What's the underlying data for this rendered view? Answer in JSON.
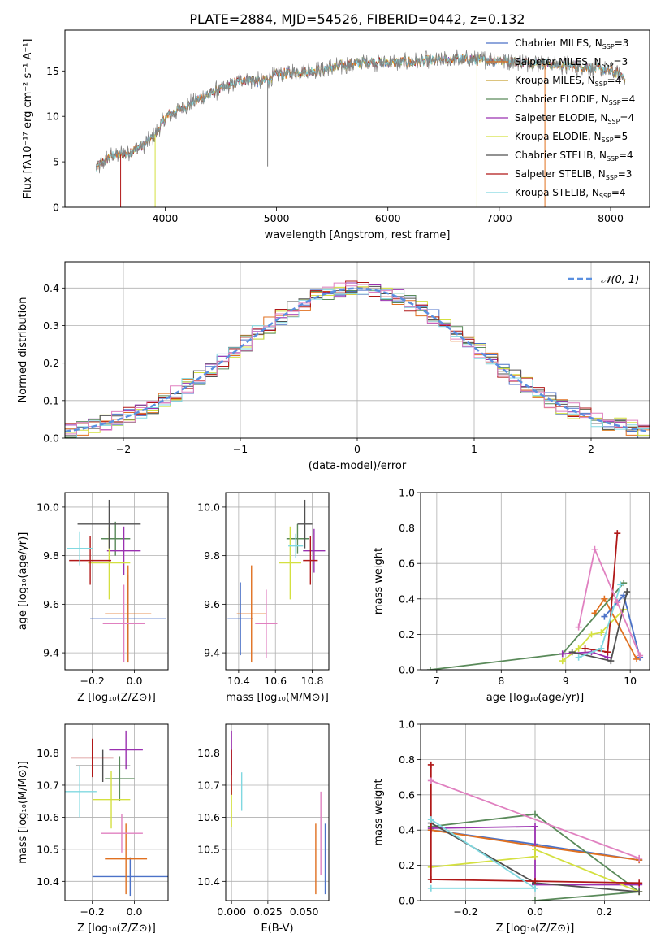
{
  "figure": {
    "title": "PLATE=2884, MJD=54526, FIBERID=0442, z=0.132"
  },
  "legend_series": [
    {
      "name": "Chabrier MILES, N",
      "sub": "SSP",
      "suffix": "=3",
      "color": "#4c72c8"
    },
    {
      "name": "Salpeter MILES, N",
      "sub": "SSP",
      "suffix": "=3",
      "color": "#e07020"
    },
    {
      "name": "Kroupa MILES, N",
      "sub": "SSP",
      "suffix": "=4",
      "color": "#c8a030"
    },
    {
      "name": "Chabrier ELODIE, N",
      "sub": "SSP",
      "suffix": "=4",
      "color": "#5a8a5a"
    },
    {
      "name": "Salpeter ELODIE, N",
      "sub": "SSP",
      "suffix": "=4",
      "color": "#9a30b0"
    },
    {
      "name": "Kroupa ELODIE, N",
      "sub": "SSP",
      "suffix": "=5",
      "color": "#d4e040"
    },
    {
      "name": "Chabrier STELIB, N",
      "sub": "SSP",
      "suffix": "=4",
      "color": "#505050"
    },
    {
      "name": "Salpeter STELIB, N",
      "sub": "SSP",
      "suffix": "=3",
      "color": "#b01818"
    },
    {
      "name": "Kroupa STELIB, N",
      "sub": "SSP",
      "suffix": "=4",
      "color": "#80d8e0"
    }
  ],
  "extra_colors": {
    "pink": "#e080c0",
    "teal": "#90e0d0",
    "data_gray": "#808080",
    "gauss": "#5a90e0"
  },
  "chart_data": [
    {
      "id": "spectrum",
      "type": "line",
      "title": "PLATE=2884, MJD=54526, FIBERID=0442, z=0.132",
      "xlabel": "wavelength [Angstrom, rest frame]",
      "ylabel": "Flux [fλ10⁻¹⁷ erg cm⁻² s⁻¹ A⁻¹]",
      "xlim": [
        3100,
        8350
      ],
      "ylim": [
        0,
        19.5
      ],
      "xticks": [
        4000,
        5000,
        6000,
        7000,
        8000
      ],
      "yticks": [
        0,
        5,
        10,
        15
      ],
      "grid": false,
      "legend": "top-right",
      "spectrum_x_range": [
        3380,
        8130
      ],
      "continuum": [
        [
          3380,
          4.2
        ],
        [
          3500,
          5.6
        ],
        [
          3650,
          5.9
        ],
        [
          3800,
          6.8
        ],
        [
          3900,
          7.8
        ],
        [
          4000,
          9.8
        ],
        [
          4100,
          10.6
        ],
        [
          4300,
          11.9
        ],
        [
          4500,
          13.0
        ],
        [
          4700,
          14.1
        ],
        [
          4860,
          13.8
        ],
        [
          5000,
          14.6
        ],
        [
          5200,
          14.9
        ],
        [
          5400,
          15.1
        ],
        [
          5600,
          15.6
        ],
        [
          5800,
          16.0
        ],
        [
          6000,
          15.9
        ],
        [
          6200,
          16.0
        ],
        [
          6400,
          16.1
        ],
        [
          6600,
          16.3
        ],
        [
          6800,
          16.2
        ],
        [
          7000,
          16.2
        ],
        [
          7200,
          16.0
        ],
        [
          7400,
          15.8
        ],
        [
          7600,
          15.6
        ],
        [
          7800,
          15.4
        ],
        [
          8000,
          15.0
        ],
        [
          8130,
          14.3
        ]
      ]
    },
    {
      "id": "residual_histogram",
      "type": "histogram",
      "xlabel": "(data-model)/error",
      "ylabel": "Normed distribution",
      "xlim": [
        -2.5,
        2.5
      ],
      "ylim": [
        0,
        0.47
      ],
      "xticks": [
        -2,
        -1,
        0,
        1,
        2
      ],
      "yticks": [
        0.0,
        0.1,
        0.2,
        0.3,
        0.4
      ],
      "grid": true,
      "legend": "top-right",
      "legend_label": "𝒩(0, 1)",
      "bin_width": 0.1,
      "gaussian": {
        "mu": 0,
        "sigma": 1
      }
    },
    {
      "id": "age_vs_Z",
      "type": "scatter",
      "xlabel": "Z [log₁₀(Z/Z⊙)]",
      "ylabel": "age  [log₁₀(age/yr)]",
      "xlim": [
        -0.33,
        0.16
      ],
      "ylim": [
        9.33,
        10.06
      ],
      "xticks": [
        -0.2,
        0.0
      ],
      "yticks": [
        9.4,
        9.6,
        9.8,
        10.0
      ],
      "grid": true,
      "points": [
        {
          "series": 0,
          "x": -0.03,
          "y": 9.54,
          "xerr": 0.18,
          "yerr": 0.18
        },
        {
          "series": 1,
          "x": -0.03,
          "y": 9.56,
          "xerr": 0.11,
          "yerr": 0.2
        },
        {
          "series": 3,
          "x": -0.09,
          "y": 9.87,
          "xerr": 0.07,
          "yerr": 0.07
        },
        {
          "series": 4,
          "x": -0.05,
          "y": 9.82,
          "xerr": 0.08,
          "yerr": 0.1
        },
        {
          "series": 5,
          "x": -0.12,
          "y": 9.77,
          "xerr": 0.1,
          "yerr": 0.15
        },
        {
          "series": 6,
          "x": -0.12,
          "y": 9.93,
          "xerr": 0.15,
          "yerr": 0.1
        },
        {
          "series": 7,
          "x": -0.21,
          "y": 9.78,
          "xerr": 0.1,
          "yerr": 0.1
        },
        {
          "series": 8,
          "x": -0.26,
          "y": 9.83,
          "xerr": 0.06,
          "yerr": 0.07
        },
        {
          "series": 9,
          "x": -0.05,
          "y": 9.52,
          "xerr": 0.1,
          "yerr": 0.16
        }
      ]
    },
    {
      "id": "age_vs_mass",
      "type": "scatter",
      "xlabel": "mass [log₁₀(M/M⊙)]",
      "ylabel": "",
      "xlim": [
        10.33,
        10.89
      ],
      "ylim": [
        9.33,
        10.06
      ],
      "xticks": [
        10.4,
        10.6,
        10.8
      ],
      "yticks": [
        9.4,
        9.6,
        9.8,
        10.0
      ],
      "grid": true,
      "points": [
        {
          "series": 0,
          "x": 10.41,
          "y": 9.54,
          "xerr": 0.07,
          "yerr": 0.15
        },
        {
          "series": 1,
          "x": 10.47,
          "y": 9.56,
          "xerr": 0.08,
          "yerr": 0.2
        },
        {
          "series": 3,
          "x": 10.72,
          "y": 9.87,
          "xerr": 0.06,
          "yerr": 0.06
        },
        {
          "series": 4,
          "x": 10.81,
          "y": 9.82,
          "xerr": 0.06,
          "yerr": 0.09
        },
        {
          "series": 5,
          "x": 10.68,
          "y": 9.77,
          "xerr": 0.06,
          "yerr": 0.15
        },
        {
          "series": 6,
          "x": 10.76,
          "y": 9.93,
          "xerr": 0.04,
          "yerr": 0.1
        },
        {
          "series": 7,
          "x": 10.79,
          "y": 9.78,
          "xerr": 0.04,
          "yerr": 0.1
        },
        {
          "series": 8,
          "x": 10.71,
          "y": 9.84,
          "xerr": 0.04,
          "yerr": 0.05
        },
        {
          "series": 9,
          "x": 10.55,
          "y": 9.52,
          "xerr": 0.06,
          "yerr": 0.14
        }
      ]
    },
    {
      "id": "weight_vs_age",
      "type": "line",
      "xlabel": "age  [log₁₀(age/yr)]",
      "ylabel": "mass weight",
      "xlim": [
        6.75,
        10.3
      ],
      "ylim": [
        0,
        1.0
      ],
      "xticks": [
        7,
        8,
        9,
        10
      ],
      "yticks": [
        0.0,
        0.2,
        0.4,
        0.6,
        0.8,
        1.0
      ],
      "grid": true,
      "series": [
        {
          "series": 0,
          "x": [
            9.6,
            9.9,
            10.15
          ],
          "y": [
            0.3,
            0.42,
            0.07
          ]
        },
        {
          "series": 1,
          "x": [
            9.45,
            9.6,
            10.1
          ],
          "y": [
            0.32,
            0.4,
            0.06
          ]
        },
        {
          "series": 3,
          "x": [
            6.9,
            8.95,
            9.9
          ],
          "y": [
            0.0,
            0.09,
            0.49
          ]
        },
        {
          "series": 4,
          "x": [
            8.95,
            9.4,
            9.65
          ],
          "y": [
            0.09,
            0.1,
            0.07
          ]
        },
        {
          "series": 5,
          "x": [
            8.95,
            9.2,
            9.4,
            9.55,
            9.9
          ],
          "y": [
            0.05,
            0.12,
            0.2,
            0.21,
            0.34
          ]
        },
        {
          "series": 6,
          "x": [
            9.1,
            9.7,
            9.95
          ],
          "y": [
            0.1,
            0.05,
            0.44
          ]
        },
        {
          "series": 7,
          "x": [
            9.3,
            9.65,
            9.8
          ],
          "y": [
            0.12,
            0.1,
            0.77
          ]
        },
        {
          "series": 8,
          "x": [
            9.2,
            9.55,
            9.85
          ],
          "y": [
            0.07,
            0.12,
            0.48
          ]
        },
        {
          "series": 9,
          "x": [
            9.2,
            9.45,
            9.8,
            10.15
          ],
          "y": [
            0.24,
            0.68,
            0.38,
            0.08
          ]
        }
      ]
    },
    {
      "id": "mass_vs_Z",
      "type": "scatter",
      "xlabel": "Z [log₁₀(Z/Z⊙)]",
      "ylabel": "mass [log₁₀(M/M⊙)]",
      "xlim": [
        -0.33,
        0.16
      ],
      "ylim": [
        10.34,
        10.89
      ],
      "xticks": [
        -0.2,
        0.0
      ],
      "yticks": [
        10.4,
        10.5,
        10.6,
        10.7,
        10.8
      ],
      "grid": true,
      "points": [
        {
          "series": 0,
          "x": -0.02,
          "y": 10.415,
          "xerr": 0.18,
          "yerr": 0.06
        },
        {
          "series": 1,
          "x": -0.04,
          "y": 10.47,
          "xerr": 0.1,
          "yerr": 0.11
        },
        {
          "series": 3,
          "x": -0.07,
          "y": 10.72,
          "xerr": 0.07,
          "yerr": 0.07
        },
        {
          "series": 4,
          "x": -0.04,
          "y": 10.81,
          "xerr": 0.08,
          "yerr": 0.06
        },
        {
          "series": 5,
          "x": -0.11,
          "y": 10.655,
          "xerr": 0.09,
          "yerr": 0.09
        },
        {
          "series": 6,
          "x": -0.15,
          "y": 10.76,
          "xerr": 0.13,
          "yerr": 0.05
        },
        {
          "series": 7,
          "x": -0.2,
          "y": 10.785,
          "xerr": 0.1,
          "yerr": 0.06
        },
        {
          "series": 8,
          "x": -0.26,
          "y": 10.68,
          "xerr": 0.08,
          "yerr": 0.08
        },
        {
          "series": 9,
          "x": -0.06,
          "y": 10.55,
          "xerr": 0.1,
          "yerr": 0.06
        }
      ]
    },
    {
      "id": "mass_vs_ebv",
      "type": "scatter",
      "xlabel": "E(B-V)",
      "ylabel": "",
      "xlim": [
        -0.004,
        0.067
      ],
      "ylim": [
        10.34,
        10.89
      ],
      "xticks": [
        0.0,
        0.025,
        0.05
      ],
      "xticklabels": [
        "0.000",
        "0.025",
        "0.050"
      ],
      "yticks": [
        10.4,
        10.5,
        10.6,
        10.7,
        10.8
      ],
      "grid": true,
      "points": [
        {
          "series": 0,
          "x": 0.0645,
          "y": 10.47,
          "yerr": 0.11
        },
        {
          "series": 1,
          "x": 0.058,
          "y": 10.47,
          "yerr": 0.11
        },
        {
          "series": 4,
          "x": 0.0,
          "y": 10.8,
          "yerr": 0.07
        },
        {
          "series": 5,
          "x": 0.0,
          "y": 10.63,
          "yerr": 0.06
        },
        {
          "series": 7,
          "x": 0.0,
          "y": 10.74,
          "yerr": 0.07
        },
        {
          "series": 8,
          "x": 0.007,
          "y": 10.68,
          "yerr": 0.06
        },
        {
          "series": 9,
          "x": 0.0615,
          "y": 10.55,
          "yerr": 0.13
        }
      ]
    },
    {
      "id": "weight_vs_Z",
      "type": "line",
      "xlabel": "Z [log₁₀(Z/Z⊙)]",
      "ylabel": "mass weight",
      "xlim": [
        -0.33,
        0.33
      ],
      "ylim": [
        0,
        1.0
      ],
      "xticks": [
        -0.2,
        0.0,
        0.2
      ],
      "yticks": [
        0.0,
        0.2,
        0.4,
        0.6,
        0.8,
        1.0
      ],
      "grid": true,
      "series": [
        {
          "series": 0,
          "x": [
            -0.3,
            0.0,
            0.3
          ],
          "y": [
            0.4,
            0.32,
            0.23
          ]
        },
        {
          "series": 1,
          "x": [
            -0.3,
            0.0,
            0.3
          ],
          "y": [
            0.4,
            0.31,
            0.23
          ]
        },
        {
          "series": 3,
          "x": [
            -0.3,
            0.0,
            0.3,
            0.0
          ],
          "y": [
            0.42,
            0.49,
            0.05,
            0.0
          ]
        },
        {
          "series": 4,
          "x": [
            -0.3,
            0.0,
            0.0,
            0.3
          ],
          "y": [
            0.41,
            0.42,
            0.09,
            0.09
          ]
        },
        {
          "series": 5,
          "x": [
            -0.3,
            0.0,
            0.0,
            0.3
          ],
          "y": [
            0.19,
            0.25,
            0.29,
            0.05
          ]
        },
        {
          "series": 6,
          "x": [
            -0.3,
            0.0,
            0.3
          ],
          "y": [
            0.44,
            0.1,
            0.05
          ]
        },
        {
          "series": 7,
          "x": [
            -0.3,
            -0.3,
            0.0,
            0.3
          ],
          "y": [
            0.77,
            0.12,
            0.11,
            0.1
          ]
        },
        {
          "series": 8,
          "x": [
            -0.3,
            0.0,
            0.0,
            -0.3
          ],
          "y": [
            0.46,
            0.07,
            0.07,
            0.07
          ]
        },
        {
          "series": 9,
          "x": [
            -0.3,
            0.3
          ],
          "y": [
            0.68,
            0.24
          ]
        }
      ]
    }
  ]
}
